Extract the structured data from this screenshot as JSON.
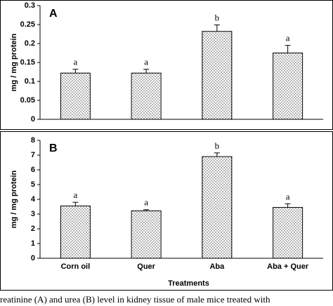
{
  "chart_data": [
    {
      "type": "bar",
      "panel_label": "A",
      "ylabel": "mg / mg protein",
      "categories": [
        null,
        null,
        null,
        null
      ],
      "values": [
        0.122,
        0.122,
        0.232,
        0.175
      ],
      "errors": [
        0.01,
        0.01,
        0.017,
        0.02
      ],
      "annotations": [
        "a",
        "a",
        "b",
        "a"
      ],
      "color": "#000000",
      "ylim": [
        0,
        0.3
      ],
      "yticks": [
        0,
        0.05,
        0.1,
        0.15,
        0.2,
        0.25,
        0.3
      ]
    },
    {
      "type": "bar",
      "panel_label": "B",
      "ylabel": "mg / mg protein",
      "xlabel": "Treatments",
      "categories": [
        "Corn oil",
        "Quer",
        "Aba",
        "Aba + Quer"
      ],
      "values": [
        3.55,
        3.22,
        6.9,
        3.45
      ],
      "errors": [
        0.25,
        0.08,
        0.25,
        0.25
      ],
      "annotations": [
        "a",
        "a",
        "b",
        "a"
      ],
      "color": "#000000",
      "ylim": [
        0,
        8
      ],
      "yticks": [
        0,
        1,
        2,
        3,
        4,
        5,
        6,
        7,
        8
      ]
    }
  ],
  "caption": "reatinine (A) and urea (B) level in kidney tissue of male mice treated with"
}
